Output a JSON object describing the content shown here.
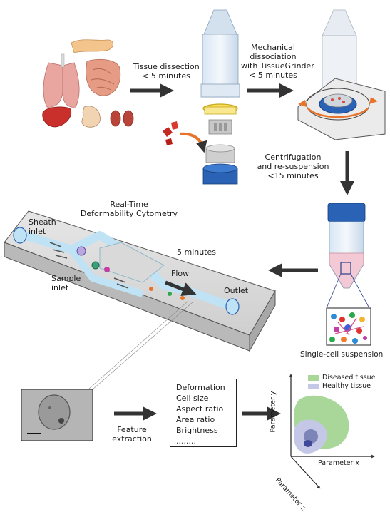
{
  "steps": {
    "dissection": {
      "line1": "Tissue dissection",
      "line2": "< 5 minutes"
    },
    "dissociation": {
      "line1": "Mechanical",
      "line2": "dissociation",
      "line3": "with TissueGrinder",
      "line4": "< 5 minutes"
    },
    "centrifugation": {
      "line1": "Centrifugation",
      "line2": "and re-suspension",
      "line3": "<15 minutes"
    }
  },
  "rtdc": {
    "title_line1": "Real-Time",
    "title_line2": "Deformability Cytometry",
    "duration": "5 minutes",
    "sheath_inlet_line1": "Sheath",
    "sheath_inlet_line2": "inlet",
    "sample_inlet_line1": "Sample",
    "sample_inlet_line2": "inlet",
    "flow": "Flow",
    "outlet": "Outlet"
  },
  "suspension_label": "Single-cell suspension",
  "feature_extraction": {
    "line1": "Feature",
    "line2": "extraction"
  },
  "features": [
    "Deformation",
    "Cell size",
    "Aspect ratio",
    "Area ratio",
    "Brightness",
    "........"
  ],
  "plot": {
    "legend": [
      {
        "label": "Diseased tissue",
        "color": "#9fd08a"
      },
      {
        "label": "Healthy tissue",
        "color": "#b8bde0"
      }
    ],
    "axis_y": "Parameter y",
    "axis_x": "Parameter x",
    "axis_z": "Parameter z"
  },
  "colors": {
    "arrow": "#333333",
    "channel": "#bfe3f5",
    "chip": "#d9d9d9",
    "tube_cap": "#2a63b5",
    "orange": "#e8742a"
  }
}
